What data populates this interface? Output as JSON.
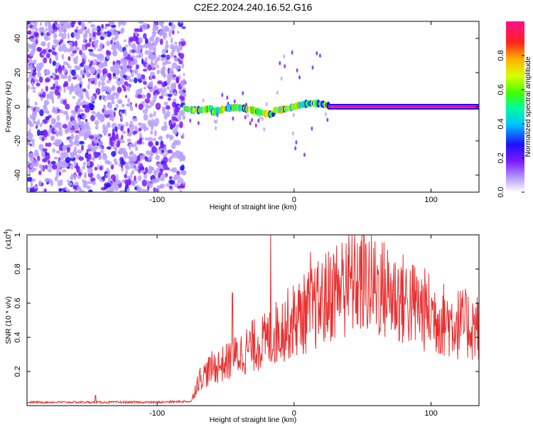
{
  "figure": {
    "title": "C2E2.2024.240.16.52.G16"
  },
  "chart_data": [
    {
      "type": "heatmap",
      "title": "C2E2.2024.240.16.52.G16",
      "xlabel": "Height of straight line (km)",
      "ylabel": "Frequency (Hz)",
      "xlim": [
        -195,
        135
      ],
      "ylim": [
        -50,
        50
      ],
      "xticks": [
        -100,
        0,
        100
      ],
      "yticks": [
        -40,
        -20,
        0,
        20,
        40
      ],
      "colorbar": {
        "label": "Normalized spectral amplitude",
        "range": [
          0.0,
          1.0
        ],
        "ticks": [
          0.0,
          0.2,
          0.4,
          0.6,
          0.8
        ],
        "tick_labels": [
          "0.0",
          "0.2",
          "0.4",
          "0.6",
          "0.8"
        ],
        "colors": [
          "#ffffff",
          "#b9a0ff",
          "#7a1cff",
          "#1f10ff",
          "#00c8ff",
          "#00ff90",
          "#40ff00",
          "#d8ff00",
          "#ffb000",
          "#ff2020",
          "#ff1090"
        ]
      },
      "regions": [
        {
          "x": [
            -195,
            -80
          ],
          "description": "broadband noise",
          "level": 0.25
        },
        {
          "x": [
            -80,
            25
          ],
          "description": "fluctuating signal near 0 Hz",
          "level": 0.6
        },
        {
          "x": [
            25,
            135
          ],
          "description": "steady line at 0 Hz",
          "level": 0.95
        }
      ]
    },
    {
      "type": "line",
      "xlabel": "Height of straight line (km)",
      "ylabel": "SNR (10 * v/v)",
      "yscale_label": "(x10",
      "yscale_exp": "4",
      "yscale_close": ")",
      "xlim": [
        -195,
        135
      ],
      "ylim": [
        0,
        1.0
      ],
      "xticks": [
        -100,
        0,
        100
      ],
      "yticks": [
        0.2,
        0.4,
        0.6,
        0.8,
        1.0
      ],
      "series": [
        {
          "name": "SNR",
          "color": "#e83030",
          "trend": {
            "x": [
              -195,
              -150,
              -100,
              -75,
              -70,
              -60,
              -50,
              -40,
              -30,
              -20,
              -10,
              0,
              10,
              20,
              30,
              40,
              50,
              60,
              70,
              80,
              90,
              100,
              110,
              120,
              135
            ],
            "y": [
              0.02,
              0.02,
              0.02,
              0.025,
              0.15,
              0.22,
              0.25,
              0.3,
              0.35,
              0.38,
              0.45,
              0.5,
              0.55,
              0.6,
              0.68,
              0.72,
              0.73,
              0.7,
              0.66,
              0.62,
              0.58,
              0.54,
              0.5,
              0.48,
              0.46
            ]
          },
          "spikes": [
            {
              "x": -145,
              "y": 0.06
            },
            {
              "x": -45,
              "y": 0.66
            },
            {
              "x": -17,
              "y": 1.0
            },
            {
              "x": 12,
              "y": 0.9
            },
            {
              "x": 38,
              "y": 0.95
            },
            {
              "x": 48,
              "y": 0.93
            }
          ]
        }
      ]
    }
  ]
}
